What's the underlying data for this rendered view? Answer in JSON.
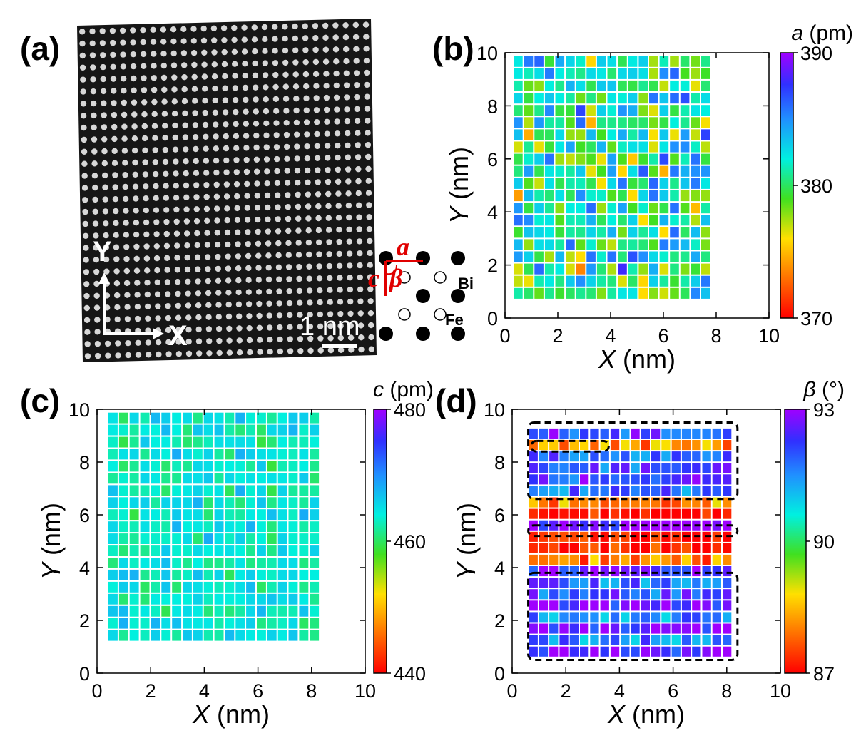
{
  "panels": {
    "a": {
      "label": "(a)",
      "scale_bar": "1 nm",
      "axis_y": "Y",
      "axis_x": "X",
      "diagram": {
        "a": "a",
        "c": "c",
        "beta": "β",
        "bi": "Bi",
        "fe": "Fe"
      }
    }
  },
  "chart_data": [
    {
      "id": "b",
      "panel_label": "(b)",
      "type": "heatmap",
      "quantity": "a",
      "unit": "(pm)",
      "xlabel": "X (nm)",
      "ylabel": "Y (nm)",
      "xlim": [
        0,
        10
      ],
      "ylim": [
        0,
        10
      ],
      "xticks": [
        0,
        2,
        4,
        6,
        8,
        10
      ],
      "yticks": [
        0,
        2,
        4,
        6,
        8,
        10
      ],
      "colorbar": {
        "min": 370,
        "max": 390,
        "ticks": [
          370,
          380,
          390
        ]
      },
      "cells": {
        "cols": 19,
        "rows": 20,
        "x_range": [
          0.3,
          7.8
        ],
        "y_range": [
          0.7,
          9.9
        ],
        "value_range": [
          370,
          390
        ],
        "mean": 381,
        "spread": 5.5
      }
    },
    {
      "id": "c",
      "panel_label": "(c)",
      "type": "heatmap",
      "quantity": "c",
      "unit": "(pm)",
      "xlabel": "X (nm)",
      "ylabel": "Y (nm)",
      "xlim": [
        0,
        10
      ],
      "ylim": [
        0,
        10
      ],
      "xticks": [
        0,
        2,
        4,
        6,
        8,
        10
      ],
      "yticks": [
        0,
        2,
        4,
        6,
        8,
        10
      ],
      "colorbar": {
        "min": 440,
        "max": 480,
        "ticks": [
          440,
          460,
          480
        ]
      },
      "cells": {
        "cols": 20,
        "rows": 19,
        "x_range": [
          0.4,
          8.3
        ],
        "y_range": [
          1.2,
          9.9
        ],
        "value_range": [
          440,
          480
        ],
        "mean": 464,
        "spread": 4
      }
    },
    {
      "id": "d",
      "panel_label": "(d)",
      "type": "heatmap",
      "quantity": "β",
      "unit": "(°)",
      "xlabel": "X (nm)",
      "ylabel": "Y (nm)",
      "xlim": [
        0,
        10
      ],
      "ylim": [
        0,
        10
      ],
      "xticks": [
        0,
        2,
        4,
        6,
        8,
        10
      ],
      "yticks": [
        0,
        2,
        4,
        6,
        8,
        10
      ],
      "colorbar": {
        "min": 87,
        "max": 93,
        "ticks": [
          87,
          90,
          93
        ]
      },
      "cells": {
        "cols": 20,
        "rows": 20,
        "x_range": [
          0.6,
          8.2
        ],
        "y_range": [
          0.6,
          9.3
        ],
        "value_range": [
          87,
          93
        ],
        "row_values": [
          92.6,
          91.6,
          92.6,
          91.6,
          92.6,
          92.0,
          91.8,
          92.6,
          88.0,
          87.2,
          87.0,
          92.8,
          87.0,
          88.2,
          91.8,
          92.2,
          92.0,
          91.8,
          88.2,
          92.2
        ]
      },
      "highlight_regions": [
        {
          "x": [
            0.6,
            8.4
          ],
          "y": [
            0.5,
            3.8
          ]
        },
        {
          "x": [
            0.6,
            8.4
          ],
          "y": [
            5.2,
            5.6
          ]
        },
        {
          "x": [
            0.6,
            8.4
          ],
          "y": [
            6.6,
            9.5
          ]
        },
        {
          "x": [
            0.7,
            3.6
          ],
          "y": [
            8.4,
            8.8
          ]
        }
      ]
    }
  ]
}
